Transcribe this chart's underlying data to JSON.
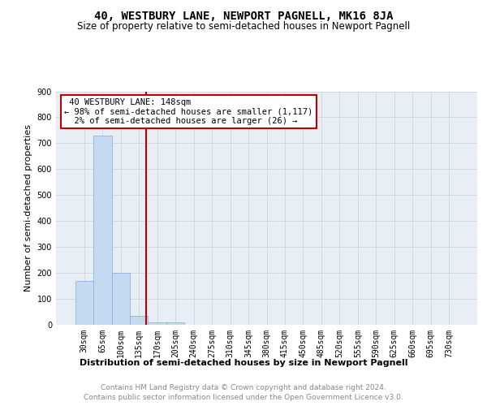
{
  "title": "40, WESTBURY LANE, NEWPORT PAGNELL, MK16 8JA",
  "subtitle": "Size of property relative to semi-detached houses in Newport Pagnell",
  "xlabel": "Distribution of semi-detached houses by size in Newport Pagnell",
  "ylabel": "Number of semi-detached properties",
  "footer1": "Contains HM Land Registry data © Crown copyright and database right 2024.",
  "footer2": "Contains public sector information licensed under the Open Government Licence v3.0.",
  "bar_labels": [
    "30sqm",
    "65sqm",
    "100sqm",
    "135sqm",
    "170sqm",
    "205sqm",
    "240sqm",
    "275sqm",
    "310sqm",
    "345sqm",
    "380sqm",
    "415sqm",
    "450sqm",
    "485sqm",
    "520sqm",
    "555sqm",
    "590sqm",
    "625sqm",
    "660sqm",
    "695sqm",
    "730sqm"
  ],
  "bar_values": [
    170,
    730,
    200,
    33,
    10,
    10,
    0,
    0,
    0,
    0,
    0,
    0,
    0,
    0,
    0,
    0,
    0,
    0,
    0,
    0,
    0
  ],
  "bar_color": "#c5d9f1",
  "bar_edge_color": "#8eb4e3",
  "grid_color": "#d0d8e4",
  "property_size": 148,
  "property_label": "40 WESTBURY LANE: 148sqm",
  "pct_smaller": 98,
  "count_smaller": 1117,
  "pct_larger": 2,
  "count_larger": 26,
  "vline_color": "#c00000",
  "annotation_box_edge": "#c00000",
  "ylim": [
    0,
    900
  ],
  "yticks": [
    0,
    100,
    200,
    300,
    400,
    500,
    600,
    700,
    800,
    900
  ],
  "background_color": "#e8eef5",
  "title_fontsize": 10,
  "subtitle_fontsize": 8.5,
  "xlabel_fontsize": 8,
  "ylabel_fontsize": 8,
  "tick_fontsize": 7,
  "footer_fontsize": 6.5,
  "ann_fontsize": 7.5
}
